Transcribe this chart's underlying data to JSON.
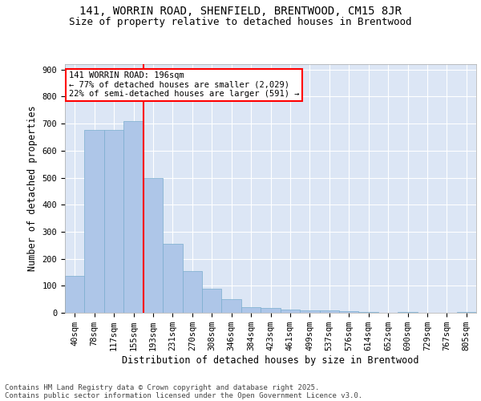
{
  "title1": "141, WORRIN ROAD, SHENFIELD, BRENTWOOD, CM15 8JR",
  "title2": "Size of property relative to detached houses in Brentwood",
  "xlabel": "Distribution of detached houses by size in Brentwood",
  "ylabel": "Number of detached properties",
  "categories": [
    "40sqm",
    "78sqm",
    "117sqm",
    "155sqm",
    "193sqm",
    "231sqm",
    "270sqm",
    "308sqm",
    "346sqm",
    "384sqm",
    "423sqm",
    "461sqm",
    "499sqm",
    "537sqm",
    "576sqm",
    "614sqm",
    "652sqm",
    "690sqm",
    "729sqm",
    "767sqm",
    "805sqm"
  ],
  "values": [
    138,
    678,
    678,
    710,
    500,
    255,
    155,
    90,
    50,
    22,
    17,
    12,
    8,
    8,
    7,
    4,
    1,
    4,
    1,
    1,
    4
  ],
  "bar_color": "#aec6e8",
  "bar_edge_color": "#7aadce",
  "vline_x_idx": 4,
  "vline_color": "red",
  "annotation_line1": "141 WORRIN ROAD: 196sqm",
  "annotation_line2": "← 77% of detached houses are smaller (2,029)",
  "annotation_line3": "22% of semi-detached houses are larger (591) →",
  "ylim": [
    0,
    920
  ],
  "yticks": [
    0,
    100,
    200,
    300,
    400,
    500,
    600,
    700,
    800,
    900
  ],
  "bg_color": "#dce6f5",
  "grid_color": "#ffffff",
  "footer_line1": "Contains HM Land Registry data © Crown copyright and database right 2025.",
  "footer_line2": "Contains public sector information licensed under the Open Government Licence v3.0.",
  "title_fontsize": 10,
  "subtitle_fontsize": 9,
  "axis_label_fontsize": 8.5,
  "tick_fontsize": 7.5,
  "annotation_fontsize": 7.5,
  "footer_fontsize": 6.5
}
